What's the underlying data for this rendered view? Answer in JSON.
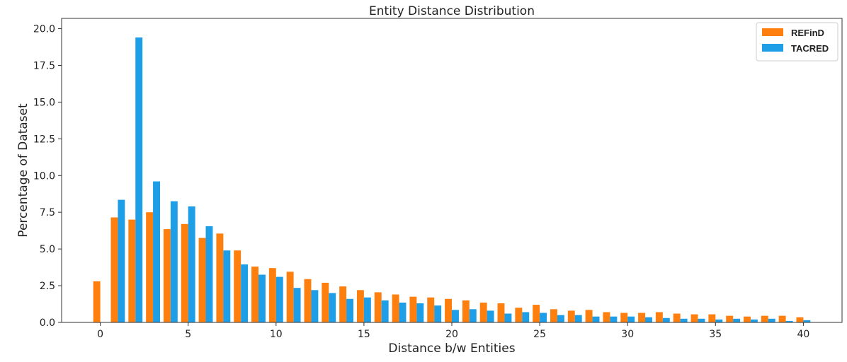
{
  "chart_data": {
    "type": "bar",
    "title": "Entity Distance Distribution",
    "xlabel": "Distance b/w Entities",
    "ylabel": "Percentage of Dataset",
    "xlim": [
      -2.2,
      42.2
    ],
    "ylim": [
      0,
      20.7
    ],
    "xticks": [
      0,
      5,
      10,
      15,
      20,
      25,
      30,
      35,
      40
    ],
    "xtick_labels": [
      "0",
      "5",
      "10",
      "15",
      "20",
      "25",
      "30",
      "35",
      "40"
    ],
    "yticks": [
      0,
      2.5,
      5,
      7.5,
      10,
      12.5,
      15,
      17.5,
      20
    ],
    "ytick_labels": [
      "0.0",
      "2.5",
      "5.0",
      "7.5",
      "10.0",
      "12.5",
      "15.0",
      "17.5",
      "20.0"
    ],
    "grid": false,
    "legend_position": "top-right",
    "x": [
      0,
      1,
      2,
      3,
      4,
      5,
      6,
      7,
      8,
      9,
      10,
      11,
      12,
      13,
      14,
      15,
      16,
      17,
      18,
      19,
      20,
      21,
      22,
      23,
      24,
      25,
      26,
      27,
      28,
      29,
      30,
      31,
      32,
      33,
      34,
      35,
      36,
      37,
      38,
      39,
      40
    ],
    "series": [
      {
        "name": "REFinD",
        "color": "#ff7f0e",
        "values": [
          2.8,
          7.15,
          7.0,
          7.5,
          6.35,
          6.7,
          5.75,
          6.05,
          4.9,
          3.8,
          3.7,
          3.45,
          2.95,
          2.7,
          2.45,
          2.2,
          2.05,
          1.9,
          1.75,
          1.7,
          1.6,
          1.5,
          1.35,
          1.3,
          1.0,
          1.2,
          0.9,
          0.8,
          0.85,
          0.7,
          0.65,
          0.65,
          0.7,
          0.6,
          0.55,
          0.55,
          0.45,
          0.4,
          0.45,
          0.45,
          0.35
        ]
      },
      {
        "name": "TACRED",
        "color": "#1f9ee8",
        "values": [
          0,
          8.35,
          19.4,
          9.6,
          8.25,
          7.9,
          6.55,
          4.9,
          3.95,
          3.25,
          3.1,
          2.35,
          2.2,
          2.0,
          1.6,
          1.7,
          1.5,
          1.35,
          1.3,
          1.15,
          0.85,
          0.9,
          0.8,
          0.6,
          0.7,
          0.65,
          0.5,
          0.5,
          0.4,
          0.4,
          0.4,
          0.35,
          0.3,
          0.25,
          0.25,
          0.2,
          0.25,
          0.2,
          0.25,
          0.1,
          0.15
        ]
      }
    ]
  }
}
